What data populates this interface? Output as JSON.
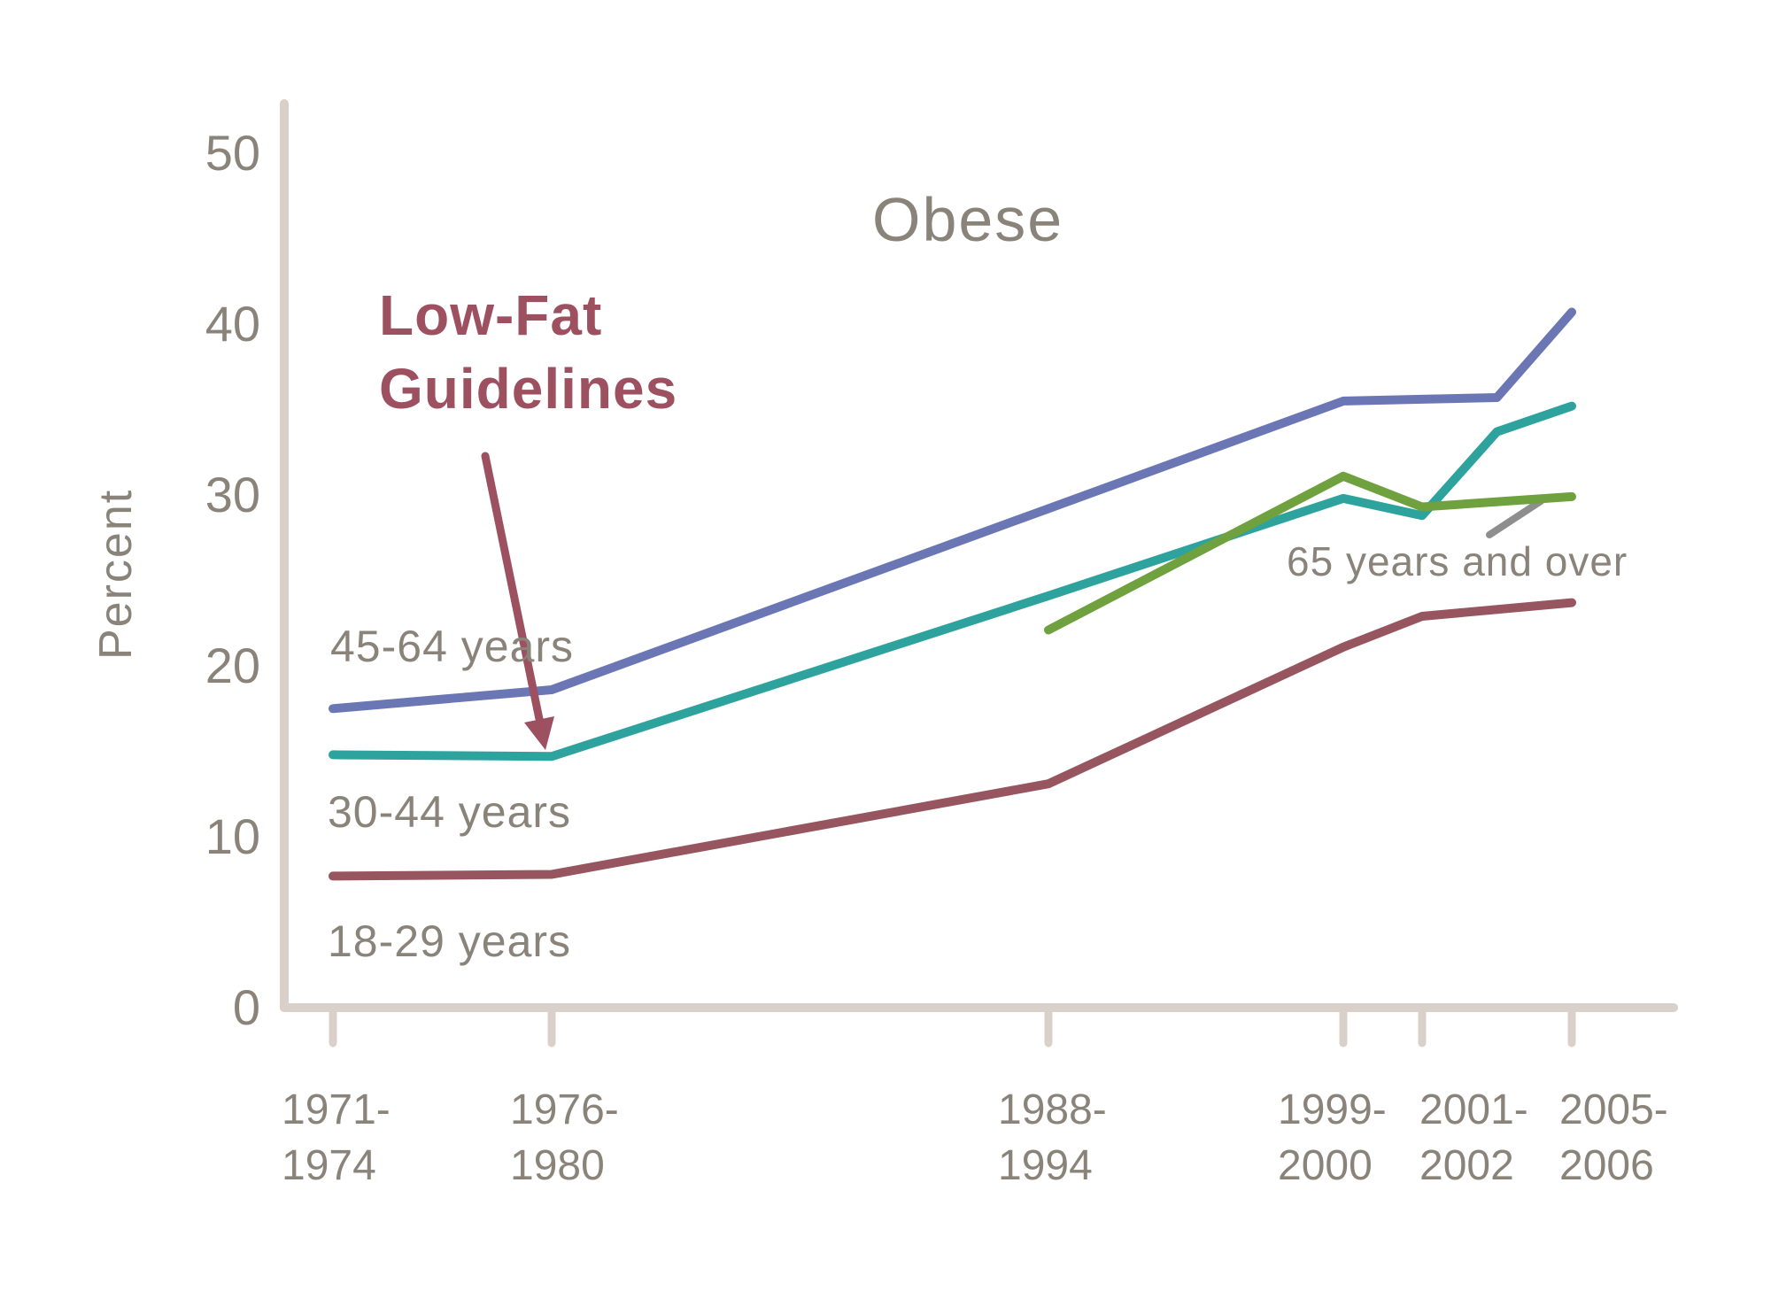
{
  "page": {
    "background": "#FFFFFF"
  },
  "colors": {
    "text": "#8A8379",
    "axis": "#D9D0C9",
    "annotation": "#9C5060",
    "pointer_gray": "#8E8E8E",
    "background": "#FFFFFF"
  },
  "chart_data": {
    "type": "line",
    "title": "Obese",
    "ylabel": "Percent",
    "ylim": [
      0,
      50
    ],
    "yticks": [
      0,
      10,
      20,
      30,
      40,
      50
    ],
    "grid": false,
    "legend_position": "inline-labels",
    "x_axis_note": "NHANES survey periods, unevenly spaced ticks; lines include unlabeled 2003-04 points",
    "x_tick_years": [
      1972.5,
      1978,
      1991,
      1999.5,
      2001.5,
      2005.5
    ],
    "x_tick_labels": [
      [
        "1971-",
        "1974"
      ],
      [
        "1976-",
        "1980"
      ],
      [
        "1988-",
        "1994"
      ],
      [
        "1999-",
        "2000"
      ],
      [
        "2001-",
        "2002"
      ],
      [
        "2005-",
        "2006"
      ]
    ],
    "series": [
      {
        "name": "45-64 years",
        "color": "#6B76B4",
        "points": [
          [
            1972.5,
            17.5
          ],
          [
            1978,
            18.6
          ],
          [
            1991,
            29.2
          ],
          [
            1999.5,
            35.5
          ],
          [
            2001.5,
            35.6
          ],
          [
            2003.5,
            35.7
          ],
          [
            2005.5,
            40.7
          ]
        ]
      },
      {
        "name": "30-44 years",
        "color": "#2EA39E",
        "points": [
          [
            1972.5,
            14.8
          ],
          [
            1978,
            14.7
          ],
          [
            1991,
            24.1
          ],
          [
            1999.5,
            29.8
          ],
          [
            2001.5,
            28.8
          ],
          [
            2003.5,
            33.7
          ],
          [
            2005.5,
            35.2
          ]
        ]
      },
      {
        "name": "18-29 years",
        "color": "#97565F",
        "points": [
          [
            1972.5,
            7.7
          ],
          [
            1978,
            7.8
          ],
          [
            1991,
            13.1
          ],
          [
            1999.5,
            21.1
          ],
          [
            2001.5,
            22.9
          ],
          [
            2005.5,
            23.7
          ]
        ]
      },
      {
        "name": "65 years and over",
        "color": "#6FA13F",
        "points": [
          [
            1991,
            22.1
          ],
          [
            1999.5,
            31.1
          ],
          [
            2001.5,
            29.3
          ],
          [
            2005.5,
            29.9
          ]
        ]
      }
    ],
    "annotations": {
      "low_fat": {
        "line1": "Low-Fat",
        "line2": "Guidelines",
        "color": "#9C5060",
        "points_to": "30-44 years line at 1976-1980"
      },
      "pointer_65": {
        "color": "#8E8E8E",
        "points_to": "65 years and over line near 2003-2006"
      }
    }
  }
}
